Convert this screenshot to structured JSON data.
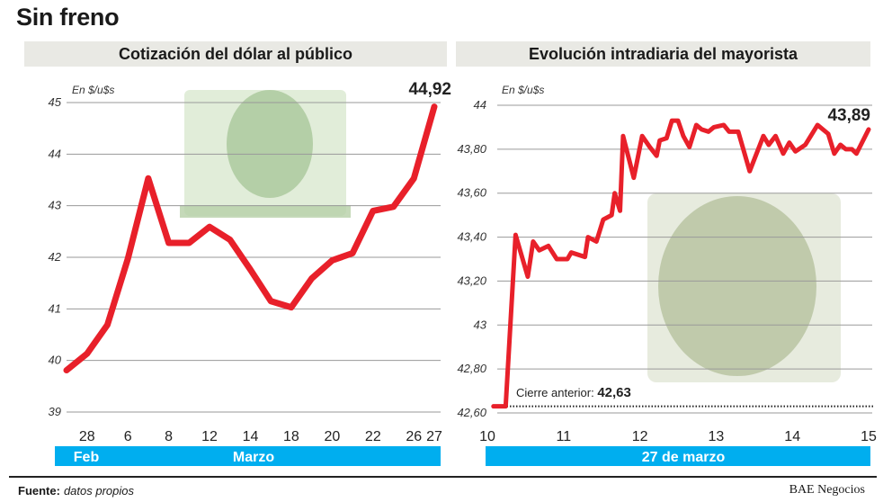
{
  "page": {
    "title": "Sin freno",
    "source_label": "Fuente:",
    "source_value": "datos propios",
    "brand": "BAE Negocios"
  },
  "colors": {
    "line": "#e8202a",
    "band": "#00aeef",
    "header_bg": "#e9e9e4",
    "grid": "#9a9a9a"
  },
  "chart_data": [
    {
      "type": "line",
      "title": "Cotización del dólar al público",
      "unit_label": "En $/u$s",
      "last_value_label": "44,92",
      "ylim": [
        39,
        45
      ],
      "yticks": [
        39,
        40,
        41,
        42,
        43,
        44,
        45
      ],
      "grid": true,
      "categories": [
        "",
        "28",
        "",
        "6",
        "",
        "8",
        "",
        "12",
        "",
        "14",
        "",
        "18",
        "",
        "20",
        "",
        "22",
        "",
        "26",
        "27"
      ],
      "values": [
        39.81,
        40.13,
        40.69,
        41.97,
        43.53,
        42.28,
        42.28,
        42.59,
        42.34,
        41.76,
        41.15,
        41.03,
        41.59,
        41.94,
        42.08,
        42.9,
        42.98,
        43.53,
        44.92
      ],
      "band_labels": [
        "Feb",
        "Marzo"
      ]
    },
    {
      "type": "line",
      "title": "Evolución intradiaria del mayorista",
      "unit_label": "En $/u$s",
      "last_value_label": "43,89",
      "ylim": [
        42.6,
        44
      ],
      "yticks": [
        42.6,
        42.8,
        43,
        43.2,
        43.4,
        43.6,
        43.8,
        44
      ],
      "ytick_labels": [
        "42,60",
        "42,80",
        "43",
        "43,20",
        "43,40",
        "43,60",
        "43,80",
        "44"
      ],
      "xlim": [
        10,
        15
      ],
      "xticks": [
        10,
        11,
        12,
        13,
        14,
        15
      ],
      "grid": true,
      "reference": {
        "label": "Cierre anterior:",
        "value_label": "42,63",
        "value": 42.63
      },
      "band_labels": [
        "27 de marzo"
      ],
      "x": [
        10.08,
        10.24,
        10.37,
        10.53,
        10.6,
        10.68,
        10.8,
        10.91,
        11.05,
        11.1,
        11.28,
        11.32,
        11.43,
        11.52,
        11.63,
        11.67,
        11.74,
        11.78,
        11.92,
        12.03,
        12.13,
        12.22,
        12.26,
        12.35,
        12.42,
        12.5,
        12.57,
        12.65,
        12.74,
        12.81,
        12.9,
        12.97,
        13.1,
        13.17,
        13.29,
        13.44,
        13.62,
        13.69,
        13.78,
        13.88,
        13.96,
        14.04,
        14.17,
        14.33,
        14.47,
        14.55,
        14.63,
        14.7,
        14.78,
        14.84,
        15.0
      ],
      "y": [
        42.63,
        42.63,
        43.41,
        43.22,
        43.38,
        43.34,
        43.36,
        43.3,
        43.3,
        43.33,
        43.31,
        43.4,
        43.38,
        43.48,
        43.5,
        43.6,
        43.52,
        43.86,
        43.67,
        43.86,
        43.81,
        43.77,
        43.84,
        43.85,
        43.93,
        43.93,
        43.86,
        43.81,
        43.91,
        43.89,
        43.88,
        43.9,
        43.91,
        43.88,
        43.88,
        43.7,
        43.86,
        43.82,
        43.86,
        43.78,
        43.83,
        43.79,
        43.82,
        43.91,
        43.87,
        43.78,
        43.82,
        43.8,
        43.8,
        43.78,
        43.89
      ]
    }
  ]
}
